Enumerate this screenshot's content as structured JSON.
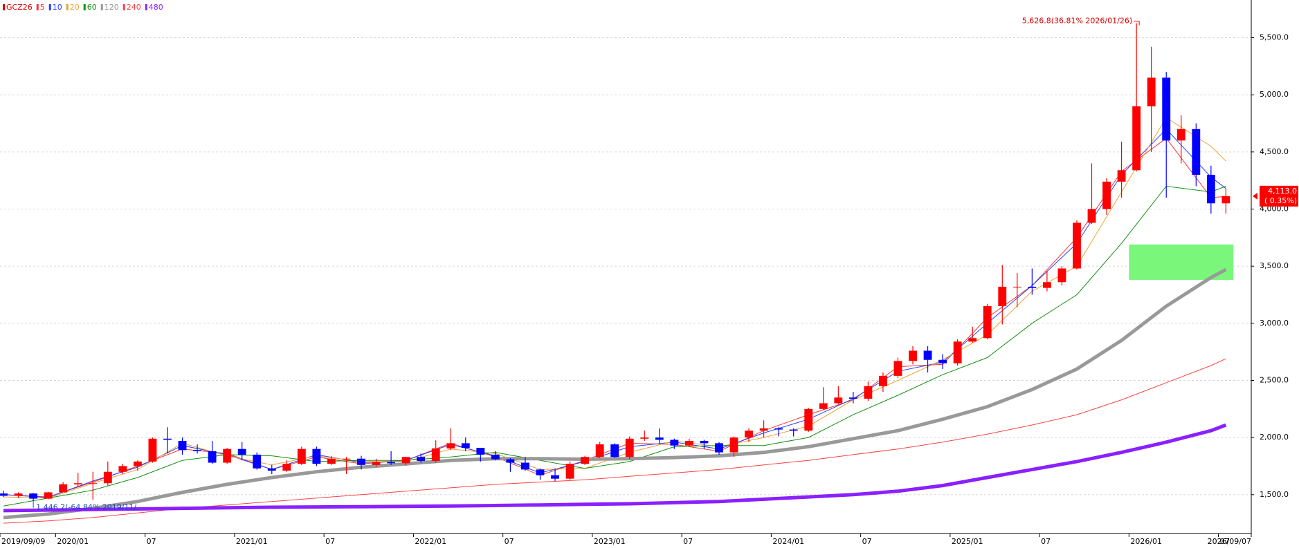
{
  "chart_data": {
    "type": "candlestick",
    "legend_symbol": {
      "name": "GCZ26",
      "color": "#e00000"
    },
    "up_color": "#ff0000",
    "down_color": "#0000ff",
    "xticks": [
      "2019/09/09",
      "2020/01",
      {
        "value": "2020/07",
        "label": "07"
      },
      "2021/01",
      {
        "value": "2021/07",
        "label": "07"
      },
      "2022/01",
      {
        "value": "2022/07",
        "label": "07"
      },
      "2023/01",
      {
        "value": "2023/07",
        "label": "07"
      },
      "2024/01",
      {
        "value": "2024/07",
        "label": "07"
      },
      "2025/01",
      {
        "value": "2025/07",
        "label": "07"
      },
      "2026/01",
      {
        "value": "2026/07",
        "label": "07"
      },
      "2026/09/07"
    ],
    "xlim": [
      "2019/09/09",
      "2026/09/07"
    ],
    "ylim": [
      1160,
      5830
    ],
    "yticks": [
      {
        "value": 1500,
        "label": "1,500.0"
      },
      {
        "value": 2000,
        "label": "2,000.0"
      },
      {
        "value": 2500,
        "label": "2,500.0"
      },
      {
        "value": 3000,
        "label": "3,000.0"
      },
      {
        "value": 3500,
        "label": "3,500.0"
      },
      {
        "value": 4000,
        "label": "4,000.0"
      },
      {
        "value": 4500,
        "label": "4,500.0"
      },
      {
        "value": 5000,
        "label": "5,000.0"
      },
      {
        "value": 5500,
        "label": "5,500.0"
      }
    ],
    "grid": true,
    "candles": {
      "x": [
        "2019/09",
        "2019/10",
        "2019/11",
        "2019/12",
        "2020/01",
        "2020/02",
        "2020/03",
        "2020/04",
        "2020/05",
        "2020/06",
        "2020/07",
        "2020/08",
        "2020/09",
        "2020/10",
        "2020/11",
        "2020/12",
        "2021/01",
        "2021/02",
        "2021/03",
        "2021/04",
        "2021/05",
        "2021/06",
        "2021/07",
        "2021/08",
        "2021/09",
        "2021/10",
        "2021/11",
        "2021/12",
        "2022/01",
        "2022/02",
        "2022/03",
        "2022/04",
        "2022/05",
        "2022/06",
        "2022/07",
        "2022/08",
        "2022/09",
        "2022/10",
        "2022/11",
        "2022/12",
        "2023/01",
        "2023/02",
        "2023/03",
        "2023/04",
        "2023/05",
        "2023/06",
        "2023/07",
        "2023/08",
        "2023/09",
        "2023/10",
        "2023/11",
        "2023/12",
        "2024/01",
        "2024/02",
        "2024/03",
        "2024/04",
        "2024/05",
        "2024/06",
        "2024/07",
        "2024/08",
        "2024/09",
        "2024/10",
        "2024/11",
        "2024/12",
        "2025/01",
        "2025/02",
        "2025/03",
        "2025/04",
        "2025/05",
        "2025/06",
        "2025/07",
        "2025/08",
        "2025/09",
        "2025/10",
        "2025/11",
        "2025/12",
        "2026/01",
        "2026/02",
        "2026/03",
        "2026/04",
        "2026/05",
        "2026/06",
        "2026/07"
      ],
      "open": [
        1510,
        1490,
        1510,
        1465,
        1520,
        1590,
        1600,
        1600,
        1700,
        1750,
        1790,
        1990,
        1970,
        1890,
        1880,
        1780,
        1900,
        1850,
        1730,
        1710,
        1770,
        1900,
        1770,
        1815,
        1815,
        1760,
        1785,
        1775,
        1830,
        1795,
        1905,
        1950,
        1910,
        1850,
        1810,
        1780,
        1720,
        1670,
        1640,
        1770,
        1830,
        1940,
        1830,
        1990,
        2000,
        1980,
        1930,
        1970,
        1950,
        1870,
        2000,
        2060,
        2080,
        2070,
        2060,
        2250,
        2300,
        2350,
        2340,
        2450,
        2540,
        2670,
        2760,
        2680,
        2650,
        2840,
        2870,
        3150,
        3320,
        3320,
        3310,
        3360,
        3480,
        3880,
        4000,
        4240,
        4340,
        4900,
        5150,
        4600,
        4700,
        4300,
        4050
      ],
      "high": [
        1535,
        1520,
        1515,
        1525,
        1610,
        1690,
        1700,
        1790,
        1770,
        1800,
        2000,
        2090,
        2000,
        1940,
        1970,
        1910,
        1960,
        1870,
        1760,
        1800,
        1920,
        1920,
        1840,
        1830,
        1840,
        1815,
        1880,
        1830,
        1860,
        1975,
        2080,
        2000,
        1910,
        1880,
        1820,
        1830,
        1730,
        1730,
        1790,
        1840,
        1960,
        1950,
        2010,
        2060,
        2080,
        1990,
        1990,
        1980,
        1960,
        2010,
        2080,
        2150,
        2090,
        2080,
        2260,
        2440,
        2450,
        2400,
        2490,
        2570,
        2700,
        2800,
        2800,
        2730,
        2860,
        2970,
        3170,
        3510,
        3440,
        3480,
        3460,
        3500,
        3900,
        4400,
        4270,
        4590,
        5626.8,
        5420,
        5200,
        4820,
        4750,
        4380,
        4180
      ],
      "low": [
        1480,
        1470,
        1446.2,
        1460,
        1520,
        1570,
        1455,
        1580,
        1680,
        1710,
        1780,
        1860,
        1850,
        1860,
        1770,
        1770,
        1800,
        1720,
        1680,
        1700,
        1760,
        1750,
        1760,
        1680,
        1720,
        1745,
        1760,
        1755,
        1780,
        1780,
        1890,
        1880,
        1790,
        1800,
        1700,
        1710,
        1630,
        1620,
        1630,
        1760,
        1820,
        1820,
        1810,
        1970,
        1950,
        1900,
        1920,
        1900,
        1850,
        1830,
        1960,
        2000,
        2010,
        2010,
        2050,
        2240,
        2290,
        2300,
        2320,
        2400,
        2520,
        2640,
        2570,
        2600,
        2630,
        2830,
        2860,
        2990,
        3140,
        3250,
        3280,
        3330,
        3470,
        3870,
        3950,
        4100,
        4330,
        4500,
        4100,
        4400,
        4200,
        3960,
        3960
      ],
      "close": [
        1490,
        1510,
        1465,
        1520,
        1590,
        1600,
        1600,
        1700,
        1750,
        1790,
        1990,
        1980,
        1890,
        1880,
        1780,
        1900,
        1850,
        1730,
        1710,
        1770,
        1900,
        1770,
        1815,
        1815,
        1760,
        1785,
        1775,
        1830,
        1795,
        1905,
        1950,
        1910,
        1850,
        1810,
        1780,
        1720,
        1670,
        1640,
        1770,
        1830,
        1940,
        1830,
        1990,
        2000,
        1980,
        1930,
        1970,
        1950,
        1870,
        2000,
        2060,
        2080,
        2070,
        2060,
        2250,
        2300,
        2350,
        2340,
        2450,
        2540,
        2670,
        2760,
        2680,
        2650,
        2840,
        2870,
        3150,
        3320,
        3320,
        3310,
        3360,
        3480,
        3880,
        4000,
        4240,
        4340,
        4900,
        5150,
        4600,
        4700,
        4300,
        4050,
        4113
      ]
    },
    "ma_x": [
      "2019/09",
      "2019/12",
      "2020/03",
      "2020/06",
      "2020/09",
      "2020/12",
      "2021/03",
      "2021/06",
      "2021/09",
      "2021/12",
      "2022/03",
      "2022/06",
      "2022/09",
      "2022/12",
      "2023/03",
      "2023/06",
      "2023/09",
      "2023/12",
      "2024/03",
      "2024/06",
      "2024/09",
      "2024/12",
      "2025/03",
      "2025/06",
      "2025/09",
      "2025/12",
      "2026/03",
      "2026/06",
      "2026/07"
    ],
    "series": [
      {
        "name": "5",
        "color": "#ff3030",
        "width": 1,
        "values": [
          1500,
          1480,
          1610,
          1750,
          1900,
          1860,
          1720,
          1830,
          1770,
          1800,
          1950,
          1830,
          1670,
          1800,
          1950,
          1940,
          1880,
          2060,
          2200,
          2330,
          2620,
          2640,
          3050,
          3330,
          3750,
          4330,
          4620,
          4100,
          4110
        ]
      },
      {
        "name": "10",
        "color": "#2040ff",
        "width": 1,
        "values": [
          1500,
          1475,
          1620,
          1740,
          1930,
          1850,
          1720,
          1850,
          1780,
          1800,
          1940,
          1840,
          1690,
          1790,
          1920,
          1960,
          1900,
          2040,
          2160,
          2340,
          2580,
          2660,
          3000,
          3330,
          3700,
          4300,
          4700,
          4280,
          4180
        ]
      },
      {
        "name": "20",
        "color": "#f0a030",
        "width": 1,
        "values": [
          1480,
          1470,
          1600,
          1720,
          1950,
          1840,
          1760,
          1840,
          1790,
          1790,
          1900,
          1860,
          1720,
          1730,
          1870,
          1970,
          1920,
          2000,
          2100,
          2330,
          2500,
          2680,
          2900,
          3280,
          3500,
          4150,
          4800,
          4550,
          4420
        ]
      },
      {
        "name": "60",
        "color": "#109010",
        "width": 1,
        "values": [
          1400,
          1470,
          1540,
          1650,
          1800,
          1850,
          1840,
          1790,
          1800,
          1800,
          1830,
          1870,
          1800,
          1730,
          1790,
          1920,
          1930,
          1930,
          2000,
          2200,
          2370,
          2550,
          2700,
          3000,
          3250,
          3700,
          4200,
          4150,
          4200
        ]
      },
      {
        "name": "120",
        "color": "#999999",
        "width": 5,
        "values": [
          1300,
          1330,
          1380,
          1440,
          1520,
          1590,
          1650,
          1700,
          1740,
          1770,
          1800,
          1815,
          1815,
          1810,
          1815,
          1825,
          1840,
          1870,
          1920,
          1990,
          2060,
          2160,
          2270,
          2420,
          2600,
          2850,
          3150,
          3400,
          3470
        ]
      },
      {
        "name": "240",
        "color": "#ff4040",
        "width": 1,
        "values": [
          1250,
          1270,
          1300,
          1340,
          1380,
          1410,
          1440,
          1470,
          1500,
          1530,
          1560,
          1590,
          1610,
          1630,
          1660,
          1690,
          1720,
          1760,
          1800,
          1850,
          1900,
          1960,
          2030,
          2110,
          2200,
          2330,
          2480,
          2630,
          2690
        ]
      },
      {
        "name": "480",
        "color": "#8a20ff",
        "width": 5,
        "values": [
          1360,
          1365,
          1370,
          1375,
          1380,
          1385,
          1390,
          1392,
          1395,
          1398,
          1400,
          1405,
          1410,
          1415,
          1420,
          1430,
          1440,
          1460,
          1480,
          1500,
          1530,
          1580,
          1650,
          1720,
          1790,
          1870,
          1960,
          2060,
          2110
        ]
      }
    ],
    "highlight_zone": {
      "x": [
        "2026/01",
        "2026/08"
      ],
      "y": [
        3380,
        3690
      ],
      "color": "#7af77a"
    },
    "annotations": [
      {
        "text": "5,626.8(36.81% 2026/01/26)",
        "x": "2026/01",
        "y": 5626.8,
        "color": "#e00000",
        "side": "top"
      },
      {
        "text": "1,446.2(-64.84% 2019/11/",
        "x": "2019/11",
        "y": 1446.2,
        "color": "#2040c0",
        "side": "bottom"
      }
    ],
    "last_price": {
      "value": 4113,
      "label": "4,113.0",
      "change": "( 0.35%)",
      "color": "#ff0000"
    }
  }
}
